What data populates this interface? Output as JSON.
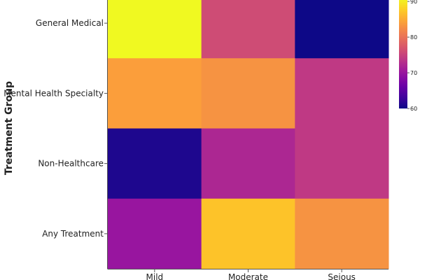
{
  "chart_data": {
    "type": "heatmap",
    "title": "",
    "xlabel": "",
    "ylabel": "Treatment Group",
    "x_categories": [
      "Mild",
      "Moderate",
      "Seious"
    ],
    "y_categories": [
      "General Medical",
      "Mental Health Specialty",
      "Non-Healthcare",
      "Any Treatment"
    ],
    "values": [
      [
        91,
        76,
        60
      ],
      [
        84,
        83,
        74
      ],
      [
        61,
        72,
        74
      ],
      [
        70,
        87,
        83
      ]
    ],
    "colorscale": "plasma",
    "colorbar": {
      "range": [
        60,
        91
      ],
      "ticks": [
        60,
        70,
        80,
        90
      ]
    }
  }
}
